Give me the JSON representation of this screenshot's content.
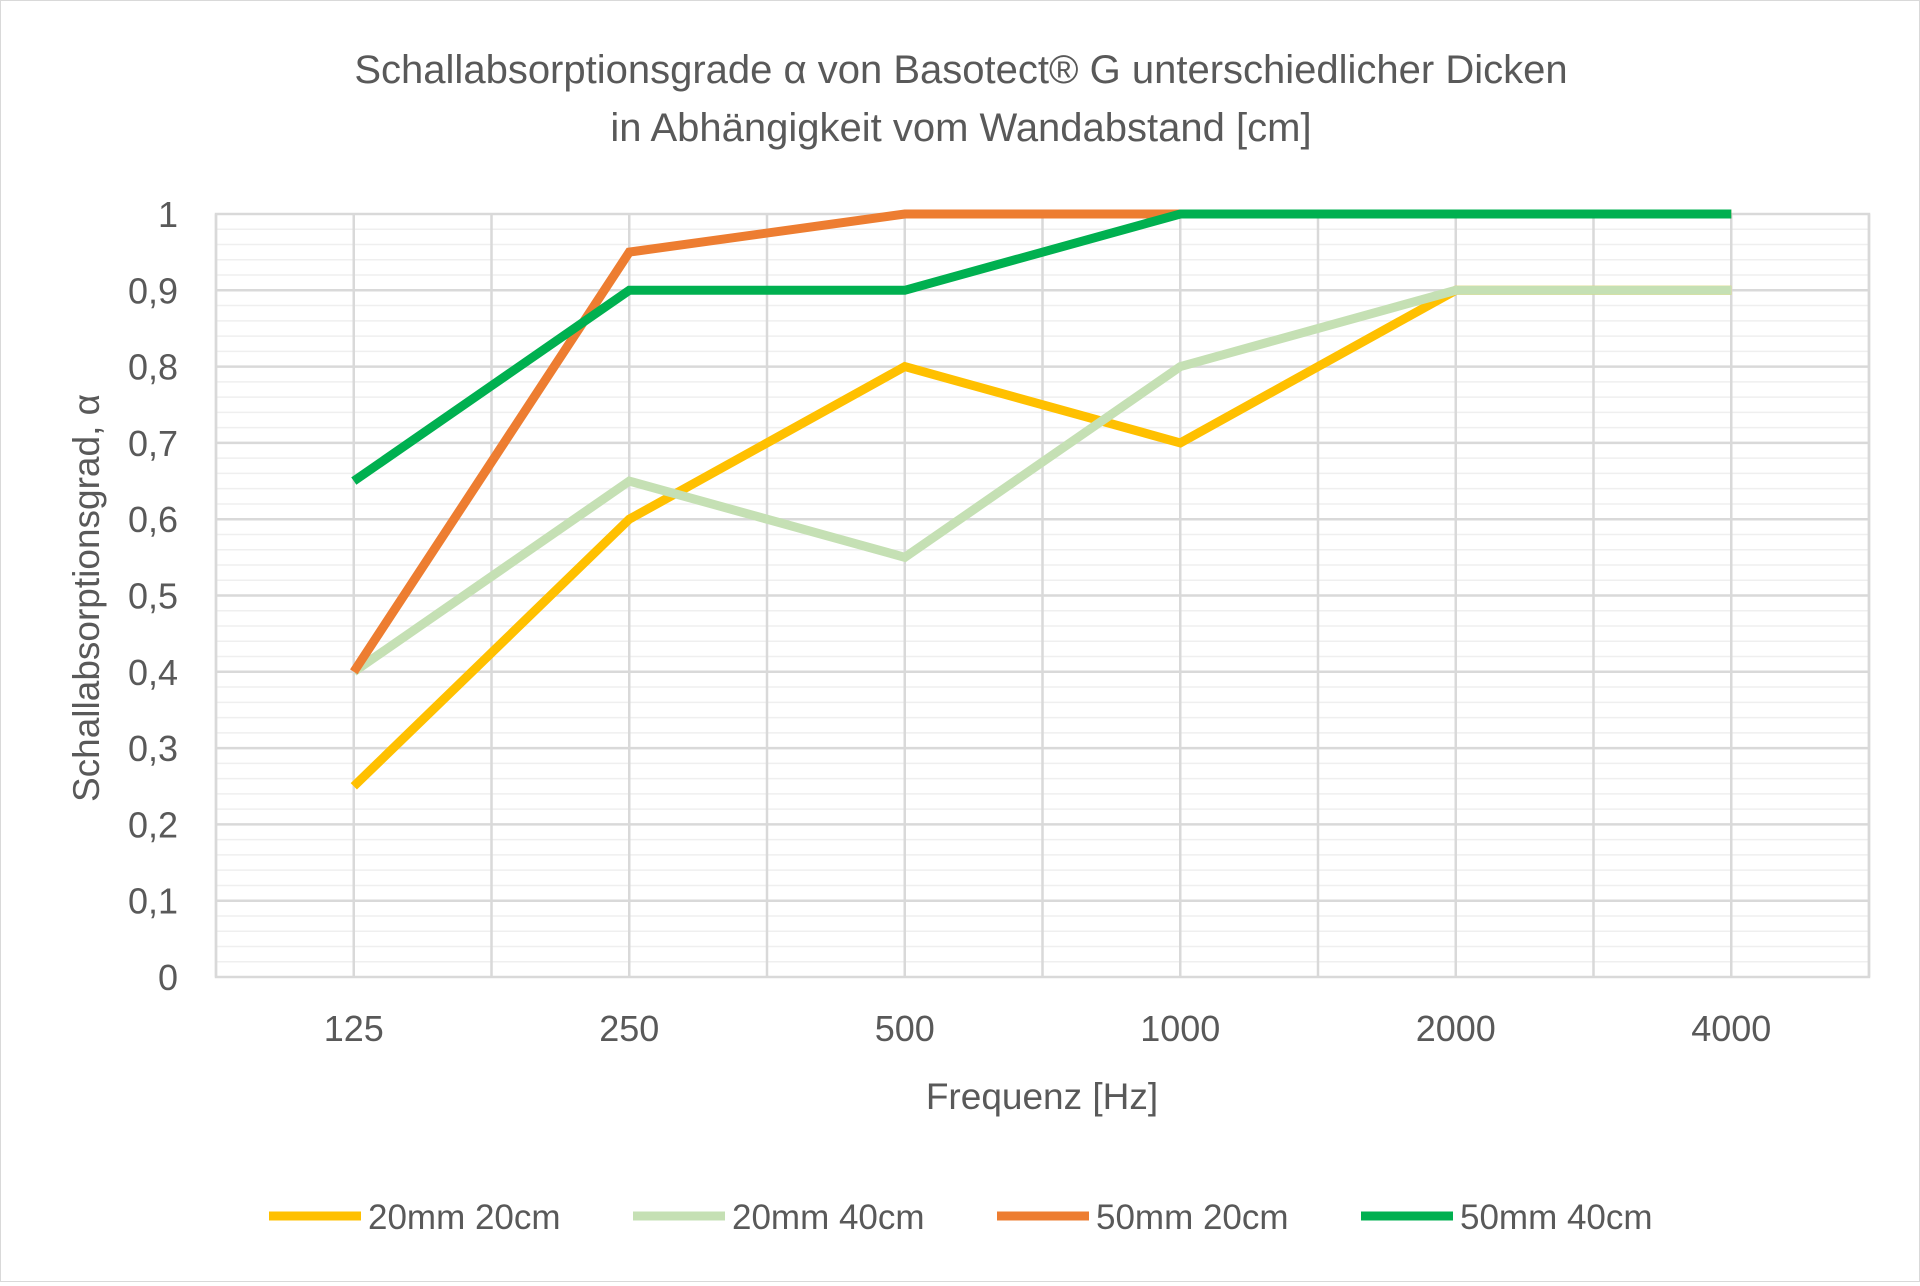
{
  "chart_data": {
    "type": "line",
    "title": "Schallabsorptionsgrade α von Basotect® G unterschiedlicher Dicken",
    "subtitle": "in Abhängigkeit vom Wandabstand [cm]",
    "xlabel": "Frequenz [Hz]",
    "ylabel": "Schallabsorptionsgrad, α",
    "categories": [
      "125",
      "250",
      "500",
      "1000",
      "2000",
      "4000"
    ],
    "ylim": [
      0,
      1
    ],
    "yticks": [
      "0",
      "0,1",
      "0,2",
      "0,3",
      "0,4",
      "0,5",
      "0,6",
      "0,7",
      "0,8",
      "0,9",
      "1"
    ],
    "grid": true,
    "legend_position": "bottom",
    "series": [
      {
        "name": "20mm 20cm",
        "color": "#FFC000",
        "values": [
          0.25,
          0.6,
          0.8,
          0.7,
          0.9,
          0.9
        ]
      },
      {
        "name": "20mm 40cm",
        "color": "#C5E0B4",
        "values": [
          0.4,
          0.65,
          0.55,
          0.8,
          0.9,
          0.9
        ]
      },
      {
        "name": "50mm 20cm",
        "color": "#ED7D31",
        "values": [
          0.4,
          0.95,
          1.0,
          1.0,
          1.0,
          1.0
        ]
      },
      {
        "name": "50mm 40cm",
        "color": "#00B050",
        "values": [
          0.65,
          0.9,
          0.9,
          1.0,
          1.0,
          1.0
        ]
      }
    ]
  }
}
